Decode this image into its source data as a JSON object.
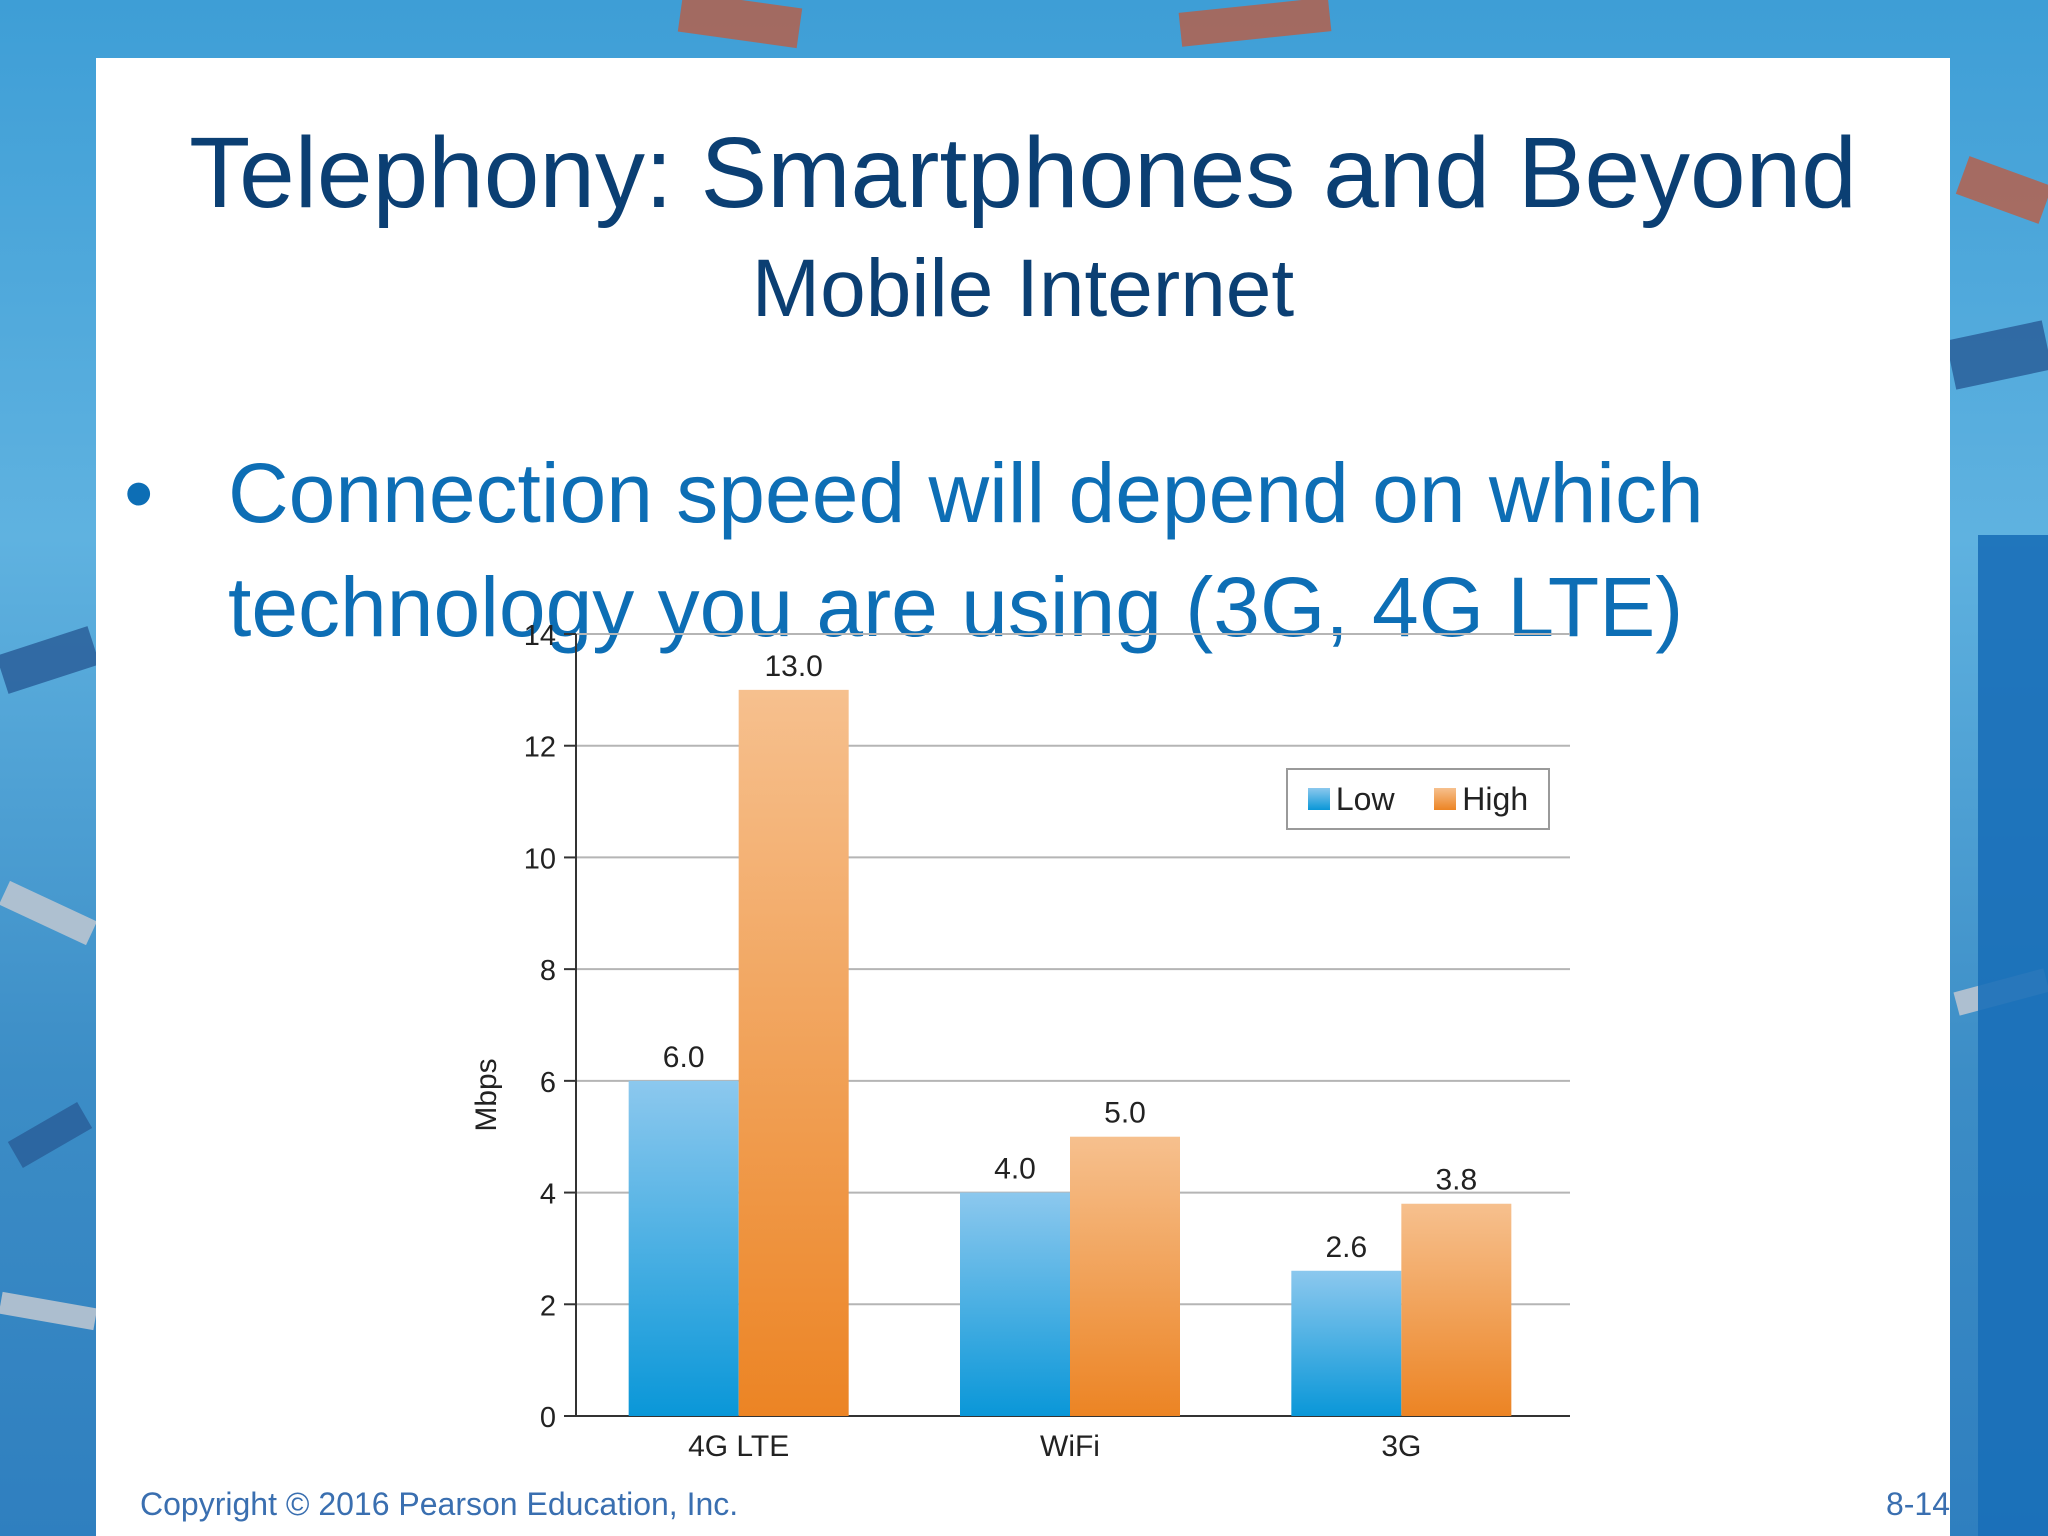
{
  "slide": {
    "title": "Telephony: Smartphones and Beyond",
    "subtitle": "Mobile Internet",
    "bullet_symbol": "•",
    "bullet_text": "Connection speed will depend on which technology you are using (3G, 4G LTE)",
    "footer_copyright": "Copyright © 2016 Pearson Education, Inc.",
    "footer_page": "8-14"
  },
  "colors": {
    "title": "#0b3f73",
    "bullet": "#0d6eb5",
    "low_series": "#1e9fe0",
    "high_series": "#f08c2e",
    "gridline": "#b5b5b5",
    "footer": "#3a6fb0"
  },
  "chart_data": {
    "type": "bar",
    "title": "",
    "xlabel": "",
    "ylabel": "Mbps",
    "ylim": [
      0,
      14
    ],
    "yticks": [
      0,
      2,
      4,
      6,
      8,
      10,
      12,
      14
    ],
    "grid": true,
    "legend_position": "top-right",
    "categories": [
      "4G LTE",
      "WiFi",
      "3G"
    ],
    "series": [
      {
        "name": "Low",
        "values": [
          6.0,
          4.0,
          2.6
        ],
        "labels": [
          "6.0",
          "4.0",
          "2.6"
        ]
      },
      {
        "name": "High",
        "values": [
          13.0,
          5.0,
          3.8
        ],
        "labels": [
          "13.0",
          "5.0",
          "3.8"
        ]
      }
    ]
  }
}
